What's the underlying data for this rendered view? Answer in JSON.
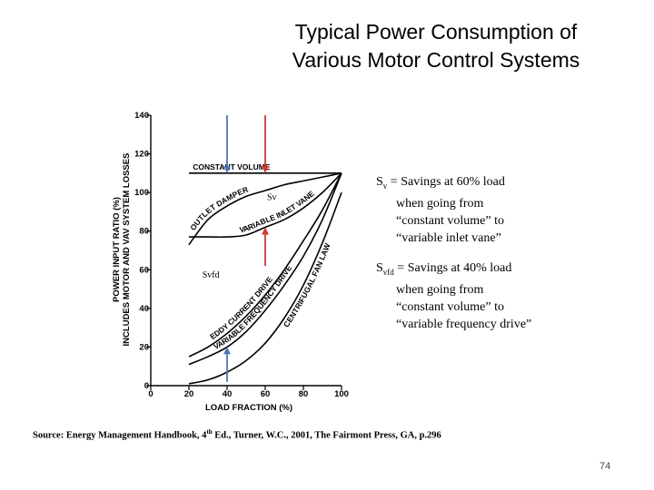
{
  "slide": {
    "title_line1": "Typical Power Consumption of",
    "title_line2": "Various Motor Control Systems",
    "page_number": "74"
  },
  "annotations": {
    "sv_symbol": "S",
    "sv_sub": "v",
    "sv_text": " = Savings at 60% load",
    "sv_line2": "when going from",
    "sv_line3": "“constant volume” to",
    "sv_line4": "“variable inlet vane”",
    "svfd_symbol": "S",
    "svfd_sub": "vfd",
    "svfd_text": " = Savings at 40% load",
    "svfd_line2": "when going from",
    "svfd_line3": "“constant volume” to",
    "svfd_line4": "“variable frequency drive”"
  },
  "source": {
    "prefix": "Source:  Energy Management Handbook, 4",
    "sup": "th",
    "suffix": " Ed., Turner, W.C., 2001, The Fairmont  Press, GA, p.296"
  },
  "chart_data": {
    "type": "line",
    "xlabel": "LOAD FRACTION (%)",
    "ylabel_line1": "POWER INPUT RATIO (%)",
    "ylabel_line2": "INCLUDES MOTOR AND VAV SYSTEM LOSSES",
    "x_ticks": [
      "0",
      "20",
      "40",
      "60",
      "80",
      "100"
    ],
    "y_ticks": [
      "0",
      "20",
      "40",
      "60",
      "80",
      "100",
      "120",
      "140"
    ],
    "xlim": [
      0,
      100
    ],
    "ylim": [
      0,
      140
    ],
    "series": [
      {
        "name": "CONSTANT VOLUME",
        "x": [
          20,
          100
        ],
        "y": [
          110,
          110
        ]
      },
      {
        "name": "OUTLET DAMPER",
        "x": [
          20,
          30,
          40,
          50,
          60,
          70,
          80,
          90,
          100
        ],
        "y": [
          73,
          86,
          93,
          98,
          101,
          104,
          106,
          108,
          110
        ]
      },
      {
        "name": "VARIABLE INLET VANE",
        "x": [
          20,
          30,
          40,
          50,
          60,
          70,
          80,
          90,
          100
        ],
        "y": [
          77,
          77,
          77,
          78,
          82,
          86,
          92,
          100,
          110
        ]
      },
      {
        "name": "EDDY CURRENT DRIVE",
        "x": [
          20,
          30,
          40,
          50,
          60,
          70,
          80,
          90,
          100
        ],
        "y": [
          15,
          20,
          27,
          36,
          47,
          60,
          75,
          91,
          110
        ]
      },
      {
        "name": "VARIABLE FREQUENCY DRIVE",
        "x": [
          20,
          30,
          40,
          50,
          60,
          70,
          80,
          90,
          100
        ],
        "y": [
          11,
          15,
          20,
          28,
          39,
          52,
          67,
          86,
          110
        ]
      },
      {
        "name": "CENTRIFUGAL FAN LAW",
        "x": [
          20,
          30,
          40,
          50,
          60,
          70,
          80,
          90,
          100
        ],
        "y": [
          1,
          3,
          7,
          13,
          22,
          35,
          52,
          74,
          100
        ]
      }
    ],
    "arrow_labels": {
      "sv": "Sv",
      "svfd": "Svfd"
    },
    "grid": false
  }
}
